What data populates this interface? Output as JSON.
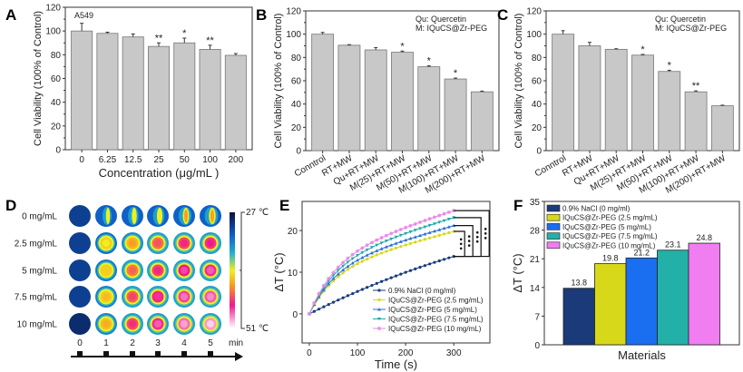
{
  "panels": {
    "A": {
      "letter": "A",
      "annotation": "A549"
    },
    "B": {
      "letter": "B",
      "note1": "Qu: Quercetin",
      "note2": "M: IQuCS@Zr-PEG"
    },
    "C": {
      "letter": "C",
      "note1": "Qu: Quercetin",
      "note2": "M: IQuCS@Zr-PEG"
    },
    "D": {
      "letter": "D",
      "row_labels": [
        "0 mg/mL",
        "2.5 mg/mL",
        "5 mg/mL",
        "7.5 mg/mL",
        "10 mg/mL"
      ],
      "time_labels": [
        "0",
        "1",
        "2",
        "3",
        "4",
        "5"
      ],
      "time_unit": "min",
      "colorbar_top": "27 ℃",
      "colorbar_bottom": "51 ℃",
      "heat_level": [
        [
          0.0,
          0.25,
          0.35,
          0.42,
          0.5,
          0.55
        ],
        [
          0.0,
          0.5,
          0.62,
          0.72,
          0.78,
          0.8
        ],
        [
          0.0,
          0.55,
          0.7,
          0.78,
          0.84,
          0.86
        ],
        [
          0.0,
          0.58,
          0.74,
          0.82,
          0.88,
          0.9
        ],
        [
          -0.05,
          0.6,
          0.77,
          0.86,
          0.92,
          0.96
        ]
      ]
    },
    "E": {
      "letter": "E"
    },
    "F": {
      "letter": "F"
    }
  },
  "chart_data": [
    {
      "id": "A",
      "type": "bar",
      "title": "",
      "annotation": "A549",
      "xlabel": "Concentration (μg/mL )",
      "ylabel": "Cell Viability (100% of  Control)",
      "ylim": [
        0,
        120
      ],
      "yticks": [
        0,
        20,
        40,
        60,
        80,
        100,
        120
      ],
      "categories": [
        "0",
        "6.25",
        "12.5",
        "25",
        "50",
        "100",
        "200"
      ],
      "values": [
        100,
        98,
        95,
        87,
        90,
        84.5,
        79.5
      ],
      "errors": [
        6.5,
        1,
        2.5,
        3,
        4,
        3.5,
        1.5
      ],
      "significance": [
        "",
        "",
        "",
        "**",
        "*",
        "**",
        ""
      ],
      "bar_color": "#c8c8c8"
    },
    {
      "id": "B",
      "type": "bar",
      "xlabel": "",
      "ylabel": "Cell Viability (100% of  Control)",
      "ylim": [
        0,
        120
      ],
      "yticks": [
        0,
        20,
        40,
        60,
        80,
        100,
        120
      ],
      "categories": [
        "Conntrol",
        "RT+MW",
        "Qu+RT+MW",
        "M(25)+RT+MW",
        "M(50)+RT+MW",
        "M(100)+RT+MW",
        "M(200)+RT+MW"
      ],
      "values": [
        100,
        90.5,
        86.5,
        84.5,
        72,
        61.5,
        50.5
      ],
      "errors": [
        1.5,
        0.5,
        2,
        1,
        0.8,
        0.8,
        0.6
      ],
      "significance": [
        "",
        "",
        "",
        "*",
        "*",
        "*",
        ""
      ],
      "legend_notes": [
        "Qu: Quercetin",
        "M: IQuCS@Zr-PEG"
      ],
      "bar_color": "#c8c8c8"
    },
    {
      "id": "C",
      "type": "bar",
      "xlabel": "",
      "ylabel": "Cell Viability (100% of  Control)",
      "ylim": [
        0,
        120
      ],
      "yticks": [
        0,
        20,
        40,
        60,
        80,
        100,
        120
      ],
      "categories": [
        "Conntrol",
        "RT+MW",
        "Qu+RT+MW",
        "M(25)+RT+MW",
        "M(50)+RT+MW",
        "M(100)+RT+MW",
        "M(200)+RT+MW"
      ],
      "values": [
        100,
        90,
        87,
        82,
        68,
        50.5,
        38.5
      ],
      "errors": [
        3,
        3,
        0.5,
        0.6,
        1,
        0.8,
        0.5
      ],
      "significance": [
        "",
        "",
        "",
        "*",
        "*",
        "**",
        ""
      ],
      "legend_notes": [
        "Qu: Quercetin",
        "M: IQuCS@Zr-PEG"
      ],
      "bar_color": "#c8c8c8"
    },
    {
      "id": "E",
      "type": "line",
      "xlabel": "Time (s)",
      "ylabel": "ΔT (°C)",
      "xlim": [
        -15,
        375
      ],
      "ylim": [
        -7,
        27
      ],
      "xticks": [
        0,
        100,
        200,
        300
      ],
      "yticks": [
        0,
        10,
        20
      ],
      "legend_position": "bottom-right",
      "significance_marks": "***",
      "series": [
        {
          "name": "0.9% NaCl (0 mg/ml)",
          "color": "#1a3a7a",
          "marker": "circle",
          "final": 13.8,
          "shape": 0.0
        },
        {
          "name": "IQuCS@Zr-PEG  (2.5 mg/mL)",
          "color": "#d8d81a",
          "marker": "circle",
          "final": 19.8,
          "shape": 1.0
        },
        {
          "name": "IQuCS@Zr-PEG  (5 mg/mL)",
          "color": "#2a6fd6",
          "marker": "triangle-up",
          "final": 21.2,
          "shape": 1.0
        },
        {
          "name": "IQuCS@Zr-PEG  (7.5 mg/mL)",
          "color": "#22aaaa",
          "marker": "triangle-down",
          "final": 23.1,
          "shape": 1.0
        },
        {
          "name": "IQuCS@Zr-PEG  (10 mg/mL)",
          "color": "#e888e8",
          "marker": "star",
          "final": 24.8,
          "shape": 1.0
        }
      ]
    },
    {
      "id": "F",
      "type": "bar",
      "xlabel": "Materials",
      "ylabel": "ΔT (°C)",
      "ylim": [
        0,
        35
      ],
      "yticks": [
        0,
        7,
        14,
        21,
        28,
        35
      ],
      "legend_position": "top-left",
      "categories": [
        "0.9% NaCl (0 mg/ml)",
        "IQuCS@Zr-PEG  (2.5 mg/mL)",
        "IQuCS@Zr-PEG  (5 mg/mL)",
        "IQuCS@Zr-PEG  (7.5 mg/mL)",
        "IQuCS@Zr-PEG  (10 mg/mL)"
      ],
      "values": [
        13.8,
        19.8,
        21.2,
        23.1,
        24.8
      ],
      "data_labels": [
        "13.8",
        "19.8",
        "21.2",
        "23.1",
        "24.8"
      ],
      "colors": [
        "#1a3a7a",
        "#d8d81a",
        "#1a6ef0",
        "#22b0a8",
        "#f07ef0"
      ]
    }
  ]
}
